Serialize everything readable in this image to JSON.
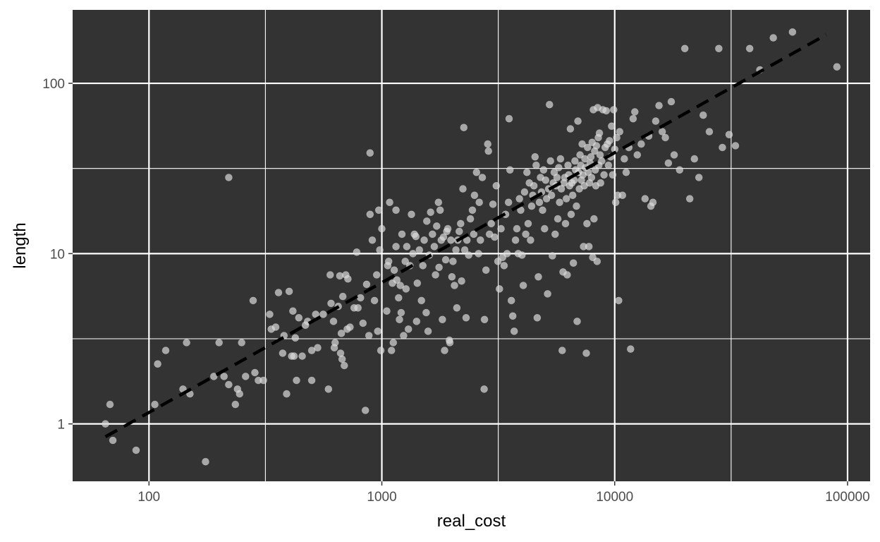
{
  "colors": {
    "panel_background": "#333333",
    "grid_major": "#ffffff",
    "grid_minor": "#ffffff",
    "points": "#d9d9d9",
    "trend_line": "#000000"
  },
  "chart_data": {
    "type": "scatter",
    "title": "",
    "xlabel": "real_cost",
    "ylabel": "length",
    "x_scale": "log10",
    "y_scale": "log10",
    "xlim": [
      47,
      125000
    ],
    "ylim": [
      0.46,
      270
    ],
    "x_ticks": [
      100,
      1000,
      10000,
      100000
    ],
    "x_tick_labels": [
      "100",
      "1000",
      "10000",
      "100000"
    ],
    "y_ticks": [
      1,
      10,
      100
    ],
    "y_tick_labels": [
      "1",
      "10",
      "100"
    ],
    "grid": true,
    "legend": "none",
    "trend_line": {
      "style": "dashed",
      "x": [
        65,
        81000
      ],
      "y": [
        0.84,
        193
      ]
    },
    "points": [
      [
        65,
        1.0
      ],
      [
        68,
        1.3
      ],
      [
        70,
        0.8
      ],
      [
        88,
        0.7
      ],
      [
        106,
        1.3
      ],
      [
        109,
        2.25
      ],
      [
        118,
        2.7
      ],
      [
        140,
        1.6
      ],
      [
        145,
        3.0
      ],
      [
        150,
        1.5
      ],
      [
        175,
        0.6
      ],
      [
        190,
        1.9
      ],
      [
        200,
        3.0
      ],
      [
        210,
        1.9
      ],
      [
        220,
        1.7
      ],
      [
        220,
        28
      ],
      [
        235,
        1.3
      ],
      [
        240,
        1.6
      ],
      [
        245,
        1.5
      ],
      [
        250,
        3.0
      ],
      [
        260,
        1.9
      ],
      [
        280,
        5.3
      ],
      [
        285,
        2.0
      ],
      [
        295,
        1.8
      ],
      [
        310,
        1.8
      ],
      [
        330,
        4.4
      ],
      [
        335,
        3.6
      ],
      [
        350,
        3.7
      ],
      [
        360,
        5.9
      ],
      [
        375,
        2.6
      ],
      [
        380,
        3.3
      ],
      [
        390,
        1.5
      ],
      [
        400,
        6.0
      ],
      [
        410,
        2.5
      ],
      [
        415,
        4.6
      ],
      [
        420,
        2.5
      ],
      [
        425,
        3.2
      ],
      [
        430,
        1.8
      ],
      [
        440,
        4.2
      ],
      [
        455,
        2.5
      ],
      [
        470,
        3.8
      ],
      [
        480,
        4.0
      ],
      [
        500,
        1.8
      ],
      [
        500,
        2.7
      ],
      [
        520,
        4.4
      ],
      [
        530,
        2.8
      ],
      [
        560,
        4.4
      ],
      [
        590,
        1.6
      ],
      [
        600,
        7.5
      ],
      [
        605,
        5.1
      ],
      [
        620,
        4.0
      ],
      [
        625,
        2.8
      ],
      [
        630,
        3.0
      ],
      [
        650,
        4.9
      ],
      [
        660,
        7.4
      ],
      [
        665,
        2.6
      ],
      [
        670,
        3.4
      ],
      [
        675,
        2.4
      ],
      [
        680,
        5.6
      ],
      [
        690,
        2.2
      ],
      [
        700,
        7.5
      ],
      [
        710,
        3.6
      ],
      [
        715,
        7.1
      ],
      [
        730,
        3.7
      ],
      [
        760,
        4.8
      ],
      [
        780,
        10.2
      ],
      [
        790,
        4.8
      ],
      [
        810,
        5.5
      ],
      [
        830,
        3.9
      ],
      [
        850,
        1.2
      ],
      [
        860,
        6.6
      ],
      [
        880,
        3.3
      ],
      [
        890,
        17
      ],
      [
        890,
        39
      ],
      [
        910,
        12
      ],
      [
        930,
        5.3
      ],
      [
        950,
        7.5
      ],
      [
        960,
        3.5
      ],
      [
        970,
        18
      ],
      [
        980,
        10.5
      ],
      [
        990,
        2.7
      ],
      [
        1000,
        14
      ],
      [
        1050,
        4.6
      ],
      [
        1060,
        8.5
      ],
      [
        1070,
        9
      ],
      [
        1080,
        20
      ],
      [
        1100,
        2.7
      ],
      [
        1110,
        6.7
      ],
      [
        1120,
        3
      ],
      [
        1130,
        8
      ],
      [
        1150,
        11
      ],
      [
        1150,
        18
      ],
      [
        1160,
        7
      ],
      [
        1180,
        5.5
      ],
      [
        1190,
        4.1
      ],
      [
        1200,
        6.5
      ],
      [
        1210,
        4.5
      ],
      [
        1220,
        13
      ],
      [
        1240,
        3.3
      ],
      [
        1260,
        9
      ],
      [
        1270,
        6.2
      ],
      [
        1280,
        11
      ],
      [
        1300,
        3.6
      ],
      [
        1320,
        8.5
      ],
      [
        1340,
        17
      ],
      [
        1360,
        10
      ],
      [
        1380,
        13
      ],
      [
        1400,
        12.6
      ],
      [
        1410,
        4
      ],
      [
        1420,
        6.7
      ],
      [
        1450,
        10.5
      ],
      [
        1480,
        5.3
      ],
      [
        1500,
        8.5
      ],
      [
        1520,
        12
      ],
      [
        1550,
        4.5
      ],
      [
        1560,
        15.5
      ],
      [
        1580,
        3.5
      ],
      [
        1600,
        9.8
      ],
      [
        1620,
        17.5
      ],
      [
        1650,
        13
      ],
      [
        1680,
        11
      ],
      [
        1700,
        7.5
      ],
      [
        1720,
        14.5
      ],
      [
        1750,
        20
      ],
      [
        1760,
        8.3
      ],
      [
        1780,
        18
      ],
      [
        1800,
        12
      ],
      [
        1820,
        4.1
      ],
      [
        1840,
        12.5
      ],
      [
        1860,
        2.7
      ],
      [
        1880,
        9.2
      ],
      [
        1900,
        13.5
      ],
      [
        1920,
        14
      ],
      [
        1950,
        3.1
      ],
      [
        1960,
        3.0
      ],
      [
        1980,
        12
      ],
      [
        2000,
        7.3
      ],
      [
        2020,
        9
      ],
      [
        2050,
        6.5
      ],
      [
        2080,
        10.5
      ],
      [
        2100,
        4.8
      ],
      [
        2120,
        12
      ],
      [
        2150,
        13.5
      ],
      [
        2180,
        15
      ],
      [
        2200,
        6.9
      ],
      [
        2230,
        24
      ],
      [
        2250,
        55
      ],
      [
        2270,
        10.5
      ],
      [
        2300,
        4.2
      ],
      [
        2320,
        12
      ],
      [
        2360,
        9.8
      ],
      [
        2400,
        16
      ],
      [
        2450,
        18
      ],
      [
        2480,
        13
      ],
      [
        2500,
        22
      ],
      [
        2550,
        30
      ],
      [
        2600,
        10
      ],
      [
        2620,
        20
      ],
      [
        2650,
        12
      ],
      [
        2700,
        28
      ],
      [
        2750,
        1.6
      ],
      [
        2760,
        4.1
      ],
      [
        2800,
        8
      ],
      [
        2850,
        44
      ],
      [
        2870,
        40
      ],
      [
        2900,
        13
      ],
      [
        2950,
        15
      ],
      [
        3000,
        19.5
      ],
      [
        3050,
        12.5
      ],
      [
        3100,
        25
      ],
      [
        3150,
        9
      ],
      [
        3200,
        6.2
      ],
      [
        3250,
        14
      ],
      [
        3300,
        9.5
      ],
      [
        3350,
        8.5
      ],
      [
        3400,
        17
      ],
      [
        3450,
        10
      ],
      [
        3500,
        20
      ],
      [
        3520,
        62
      ],
      [
        3550,
        31
      ],
      [
        3600,
        5.3
      ],
      [
        3650,
        4.3
      ],
      [
        3700,
        3.5
      ],
      [
        3750,
        12
      ],
      [
        3800,
        14
      ],
      [
        3850,
        10
      ],
      [
        3900,
        21
      ],
      [
        3950,
        18
      ],
      [
        4000,
        9.8
      ],
      [
        4050,
        6.5
      ],
      [
        4100,
        23
      ],
      [
        4150,
        13
      ],
      [
        4200,
        30
      ],
      [
        4250,
        15
      ],
      [
        4300,
        26
      ],
      [
        4350,
        12
      ],
      [
        4400,
        19
      ],
      [
        4450,
        22
      ],
      [
        4500,
        25
      ],
      [
        4550,
        37
      ],
      [
        4600,
        33
      ],
      [
        4650,
        4.2
      ],
      [
        4700,
        7.3
      ],
      [
        4750,
        20
      ],
      [
        4800,
        28
      ],
      [
        4850,
        23
      ],
      [
        4900,
        18
      ],
      [
        4950,
        31
      ],
      [
        5000,
        14
      ],
      [
        5050,
        27
      ],
      [
        5100,
        21
      ],
      [
        5150,
        5.8
      ],
      [
        5200,
        24
      ],
      [
        5250,
        75
      ],
      [
        5300,
        35
      ],
      [
        5350,
        22
      ],
      [
        5400,
        9.7
      ],
      [
        5450,
        26
      ],
      [
        5500,
        30
      ],
      [
        5550,
        13
      ],
      [
        5600,
        25
      ],
      [
        5650,
        28
      ],
      [
        5700,
        16
      ],
      [
        5750,
        32
      ],
      [
        5800,
        20
      ],
      [
        5850,
        36
      ],
      [
        5900,
        24
      ],
      [
        5950,
        2.7
      ],
      [
        6000,
        7.8
      ],
      [
        6050,
        26
      ],
      [
        6100,
        28
      ],
      [
        6150,
        15
      ],
      [
        6200,
        21
      ],
      [
        6250,
        7.5
      ],
      [
        6300,
        33
      ],
      [
        6350,
        29
      ],
      [
        6400,
        25
      ],
      [
        6450,
        54
      ],
      [
        6500,
        17
      ],
      [
        6550,
        26
      ],
      [
        6600,
        22
      ],
      [
        6650,
        8.8
      ],
      [
        6700,
        27
      ],
      [
        6750,
        35
      ],
      [
        6800,
        31
      ],
      [
        6850,
        19
      ],
      [
        6900,
        4.0
      ],
      [
        6950,
        60
      ],
      [
        7000,
        30
      ],
      [
        7050,
        24
      ],
      [
        7100,
        38
      ],
      [
        7150,
        33
      ],
      [
        7200,
        27
      ],
      [
        7250,
        44
      ],
      [
        7300,
        29
      ],
      [
        7350,
        11
      ],
      [
        7400,
        25
      ],
      [
        7450,
        36
      ],
      [
        7500,
        32
      ],
      [
        7550,
        2.6
      ],
      [
        7600,
        15
      ],
      [
        7650,
        42
      ],
      [
        7700,
        30
      ],
      [
        7750,
        11
      ],
      [
        7800,
        26
      ],
      [
        7850,
        34
      ],
      [
        7900,
        37
      ],
      [
        7950,
        28
      ],
      [
        8000,
        45
      ],
      [
        8050,
        9.5
      ],
      [
        8100,
        70
      ],
      [
        8150,
        16
      ],
      [
        8200,
        40
      ],
      [
        8250,
        31
      ],
      [
        8300,
        25
      ],
      [
        8350,
        43
      ],
      [
        8400,
        9
      ],
      [
        8450,
        72
      ],
      [
        8500,
        48
      ],
      [
        8550,
        33
      ],
      [
        8600,
        51
      ],
      [
        8650,
        38
      ],
      [
        8700,
        26
      ],
      [
        8800,
        35
      ],
      [
        8900,
        70
      ],
      [
        9000,
        29
      ],
      [
        9100,
        42
      ],
      [
        9200,
        69
      ],
      [
        9300,
        44
      ],
      [
        9400,
        33
      ],
      [
        9500,
        46
      ],
      [
        9600,
        37
      ],
      [
        9700,
        56
      ],
      [
        9800,
        29
      ],
      [
        9900,
        70
      ],
      [
        10000,
        41
      ],
      [
        10100,
        20
      ],
      [
        10200,
        48
      ],
      [
        10300,
        22
      ],
      [
        10400,
        5.3
      ],
      [
        10500,
        52
      ],
      [
        10800,
        22
      ],
      [
        11000,
        36
      ],
      [
        11200,
        30
      ],
      [
        11500,
        42
      ],
      [
        11700,
        2.75
      ],
      [
        12000,
        62
      ],
      [
        12200,
        68
      ],
      [
        12500,
        38
      ],
      [
        13000,
        44
      ],
      [
        13500,
        21
      ],
      [
        14000,
        49
      ],
      [
        14300,
        19
      ],
      [
        14600,
        20
      ],
      [
        15000,
        60
      ],
      [
        15500,
        74
      ],
      [
        16000,
        52
      ],
      [
        16500,
        48
      ],
      [
        17000,
        34
      ],
      [
        17500,
        78
      ],
      [
        18000,
        38
      ],
      [
        19000,
        31
      ],
      [
        20000,
        160
      ],
      [
        21000,
        21
      ],
      [
        22000,
        36
      ],
      [
        23000,
        28
      ],
      [
        24000,
        65
      ],
      [
        25500,
        52
      ],
      [
        28000,
        160
      ],
      [
        29000,
        42
      ],
      [
        31000,
        50
      ],
      [
        33000,
        43
      ],
      [
        38000,
        160
      ],
      [
        42000,
        120
      ],
      [
        48000,
        185
      ],
      [
        58000,
        200
      ],
      [
        90000,
        125
      ]
    ]
  }
}
